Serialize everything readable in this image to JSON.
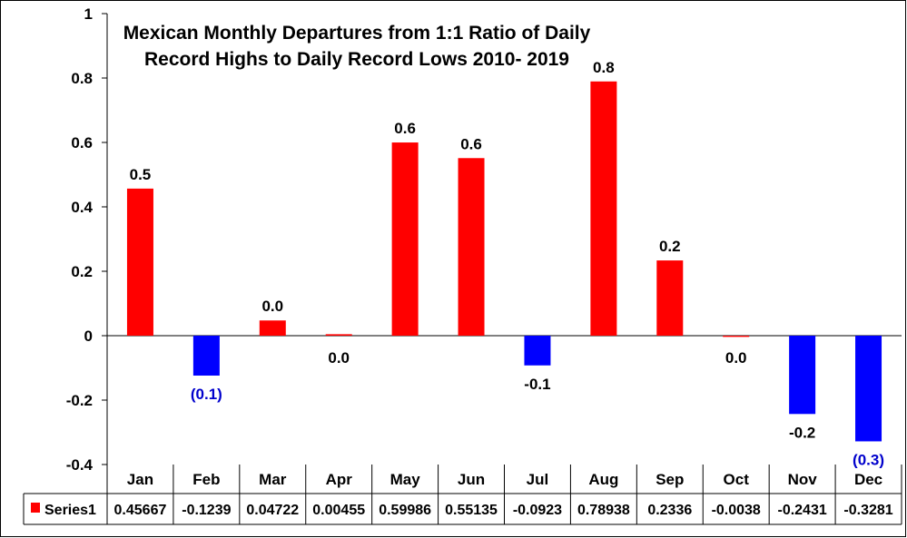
{
  "chart_data": {
    "type": "bar",
    "title_lines": [
      "Mexican Monthly Departures from 1:1 Ratio of Daily",
      "Record Highs to Daily Record Lows 2010- 2019"
    ],
    "categories": [
      "Jan",
      "Feb",
      "Mar",
      "Apr",
      "May",
      "Jun",
      "Jul",
      "Aug",
      "Sep",
      "Oct",
      "Nov",
      "Dec"
    ],
    "series": [
      {
        "name": "Series1",
        "values": [
          0.45667,
          -0.1239,
          0.04722,
          0.00455,
          0.59986,
          0.55135,
          -0.0923,
          0.78938,
          0.2336,
          -0.0038,
          -0.2431,
          -0.3281
        ],
        "table_values": [
          "0.45667",
          "-0.1239",
          "0.04722",
          "0.00455",
          "0.59986",
          "0.55135",
          "-0.0923",
          "0.78938",
          "0.2336",
          "-0.0038",
          "-0.2431",
          "-0.3281"
        ],
        "data_labels": [
          "0.5",
          "(0.1)",
          "0.0",
          "0.0",
          "0.6",
          "0.6",
          "-0.1",
          "0.8",
          "0.2",
          "0.0",
          "-0.2",
          "(0.3)"
        ]
      }
    ],
    "bar_colors": [
      "#ff0000",
      "#0000ff",
      "#ff0000",
      "#ff0000",
      "#ff0000",
      "#ff0000",
      "#0000ff",
      "#ff0000",
      "#ff0000",
      "#ff0000",
      "#0000ff",
      "#0000ff"
    ],
    "label_colors": [
      "#000000",
      "#0000cc",
      "#000000",
      "#000000",
      "#000000",
      "#000000",
      "#000000",
      "#000000",
      "#000000",
      "#000000",
      "#000000",
      "#0000cc"
    ],
    "ylim": [
      -0.4,
      1
    ],
    "yticks": [
      "1",
      "0.8",
      "0.6",
      "0.4",
      "0.2",
      "0",
      "-0.2",
      "-0.4"
    ],
    "ytick_values": [
      1,
      0.8,
      0.6,
      0.4,
      0.2,
      0,
      -0.2,
      -0.4
    ],
    "gridlines": false,
    "data_table": true,
    "legend_key_color": "#ff0000"
  }
}
